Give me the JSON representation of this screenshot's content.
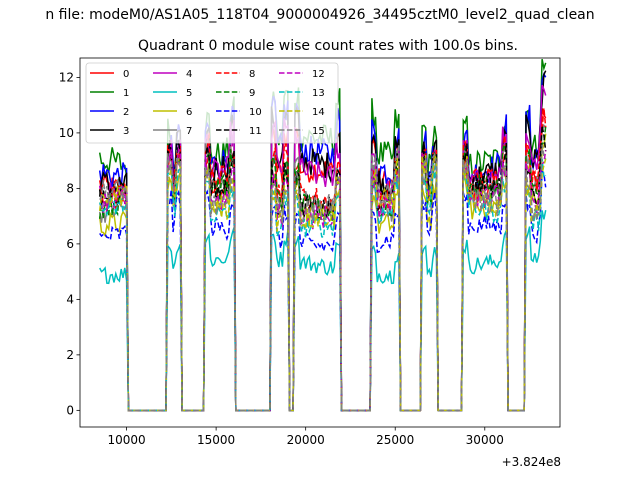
{
  "figure": {
    "suptitle": "n file: modeM0/AS1A05_118T04_9000004926_34495cztM0_level2_quad_clean",
    "offset_label": "+3.824e8"
  },
  "chart_data": {
    "type": "line",
    "title": "Quadrant 0 module wise count rates with 100.0s bins.",
    "xlabel": "",
    "ylabel": "",
    "xlim": [
      7400,
      34200
    ],
    "ylim": [
      -0.6,
      12.7
    ],
    "xticks": [
      10000,
      15000,
      20000,
      25000,
      30000
    ],
    "xtick_labels": [
      "10000",
      "15000",
      "20000",
      "25000",
      "30000"
    ],
    "yticks": [
      0,
      2,
      4,
      6,
      8,
      10,
      12
    ],
    "ytick_labels": [
      "0",
      "2",
      "4",
      "6",
      "8",
      "10",
      "12"
    ],
    "legend": {
      "placement": "top-left",
      "ncol": 4
    },
    "bin_width_s": 100,
    "x_start": 8500,
    "x_end": 33400,
    "active_intervals": [
      [
        8500,
        10000
      ],
      [
        12300,
        13000
      ],
      [
        14400,
        16000
      ],
      [
        18100,
        19000
      ],
      [
        19400,
        21900
      ],
      [
        23700,
        25200
      ],
      [
        26500,
        27300
      ],
      [
        28800,
        31200
      ],
      [
        32300,
        33400
      ]
    ],
    "series": [
      {
        "name": "0",
        "level": 8.2,
        "color": "#ff0000",
        "style": "solid"
      },
      {
        "name": "1",
        "level": 9.3,
        "color": "#008000",
        "style": "solid"
      },
      {
        "name": "2",
        "level": 8.9,
        "color": "#0000ff",
        "style": "solid"
      },
      {
        "name": "3",
        "level": 8.6,
        "color": "#000000",
        "style": "solid"
      },
      {
        "name": "4",
        "level": 8.3,
        "color": "#bf00bf",
        "style": "solid"
      },
      {
        "name": "5",
        "level": 5.2,
        "color": "#00bfbf",
        "style": "solid"
      },
      {
        "name": "6",
        "level": 7.1,
        "color": "#bfbf00",
        "style": "solid"
      },
      {
        "name": "7",
        "level": 7.6,
        "color": "#808080",
        "style": "solid"
      },
      {
        "name": "8",
        "level": 7.9,
        "color": "#ff0000",
        "style": "dashed"
      },
      {
        "name": "9",
        "level": 7.6,
        "color": "#008000",
        "style": "dashed"
      },
      {
        "name": "10",
        "level": 6.3,
        "color": "#0000ff",
        "style": "dashed"
      },
      {
        "name": "11",
        "level": 7.7,
        "color": "#000000",
        "style": "dashed"
      },
      {
        "name": "12",
        "level": 7.4,
        "color": "#bf00bf",
        "style": "dashed"
      },
      {
        "name": "13",
        "level": 7.0,
        "color": "#00bfbf",
        "style": "dashed"
      },
      {
        "name": "14",
        "level": 7.3,
        "color": "#bfbf00",
        "style": "dashed"
      },
      {
        "name": "15",
        "level": 7.5,
        "color": "#808080",
        "style": "dashed"
      }
    ]
  }
}
